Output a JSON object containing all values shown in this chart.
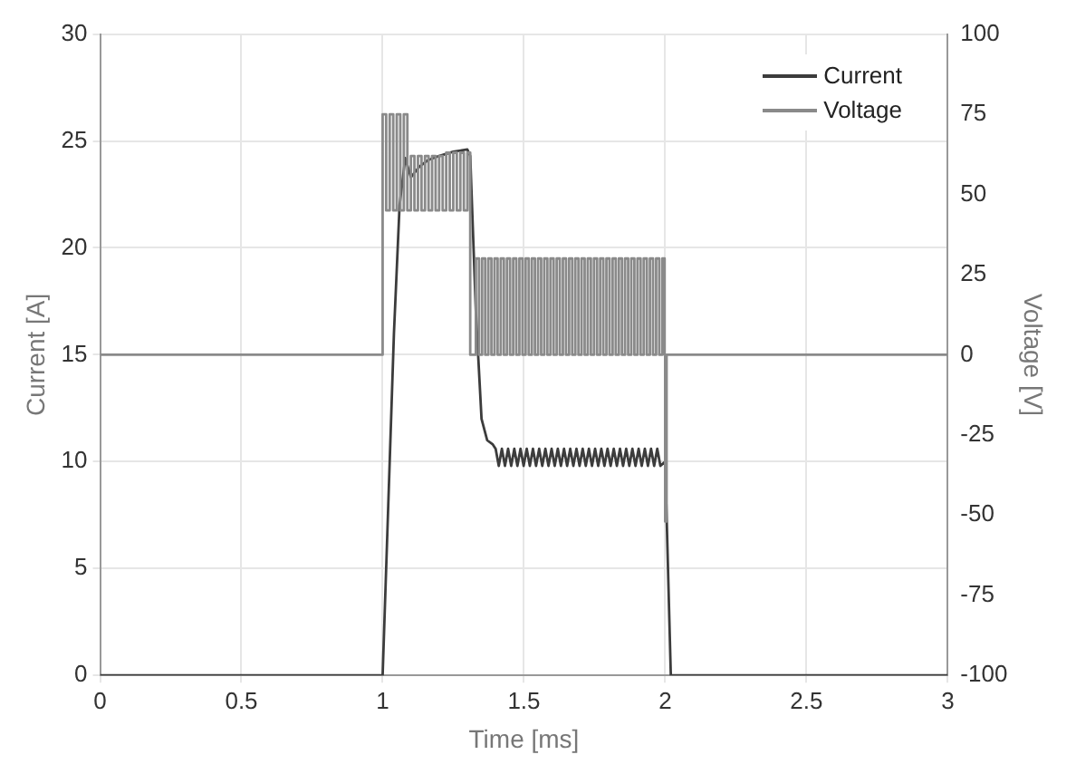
{
  "chart_data": {
    "type": "line",
    "xlabel": "Time [ms]",
    "ylabel": "Current [A]",
    "y2label": "Voltage [V]",
    "xlim": [
      0,
      3
    ],
    "xticks": [
      0,
      0.5,
      1,
      1.5,
      2,
      2.5,
      3
    ],
    "ylim": [
      0,
      30
    ],
    "yticks": [
      0,
      5,
      10,
      15,
      20,
      25,
      30
    ],
    "y2lim": [
      -100,
      100
    ],
    "y2ticks": [
      -100,
      -75,
      -50,
      -25,
      0,
      25,
      50,
      75,
      100
    ],
    "grid": true,
    "legend": "top right",
    "marker": "none",
    "line_style": "solid",
    "series": [
      {
        "name": "Current",
        "color": "#3c3c3c",
        "x": [
          0,
          1.0,
          1.02,
          1.04,
          1.06,
          1.08,
          1.1,
          1.13,
          1.16,
          1.2,
          1.25,
          1.3,
          1.31,
          1.33,
          1.35,
          1.37,
          1.39,
          1.4,
          1.411,
          1.422,
          1.433,
          1.444,
          1.455,
          1.466,
          1.477,
          1.488,
          1.499,
          1.51,
          1.521,
          1.532,
          1.543,
          1.554,
          1.565,
          1.576,
          1.587,
          1.598,
          1.609,
          1.62,
          1.631,
          1.642,
          1.653,
          1.664,
          1.675,
          1.686,
          1.697,
          1.708,
          1.719,
          1.73,
          1.741,
          1.752,
          1.763,
          1.774,
          1.785,
          1.796,
          1.807,
          1.818,
          1.829,
          1.84,
          1.851,
          1.862,
          1.873,
          1.884,
          1.895,
          1.906,
          1.917,
          1.928,
          1.939,
          1.95,
          1.961,
          1.972,
          1.983,
          2.0,
          2.02,
          3.0
        ],
        "values": [
          0,
          0,
          8,
          16,
          22,
          24.2,
          23.3,
          23.8,
          24.1,
          24.3,
          24.5,
          24.6,
          24.3,
          17,
          12,
          11,
          10.8,
          10.6,
          9.8,
          10.6,
          9.8,
          10.6,
          9.8,
          10.6,
          9.8,
          10.6,
          9.8,
          10.6,
          9.8,
          10.6,
          9.8,
          10.6,
          9.8,
          10.6,
          9.8,
          10.6,
          9.8,
          10.6,
          9.8,
          10.6,
          9.8,
          10.6,
          9.8,
          10.6,
          9.8,
          10.6,
          9.8,
          10.6,
          9.8,
          10.6,
          9.8,
          10.6,
          9.8,
          10.6,
          9.8,
          10.6,
          9.8,
          10.6,
          9.8,
          10.6,
          9.8,
          10.6,
          9.8,
          10.6,
          9.8,
          10.6,
          9.8,
          10.6,
          9.8,
          10.6,
          9.8,
          10,
          0,
          0
        ]
      },
      {
        "name": "Voltage",
        "color": "#8a8a8a",
        "type": "step",
        "axis": "y2",
        "x": [
          0,
          1.0,
          1.0125,
          1.025,
          1.0375,
          1.05,
          1.0625,
          1.075,
          1.0875,
          1.1,
          1.1125,
          1.125,
          1.1375,
          1.15,
          1.1625,
          1.175,
          1.1875,
          1.2,
          1.2125,
          1.225,
          1.2375,
          1.25,
          1.2625,
          1.275,
          1.2875,
          1.3,
          1.31,
          1.33,
          1.341,
          1.352,
          1.363,
          1.374,
          1.385,
          1.396,
          1.407,
          1.418,
          1.429,
          1.44,
          1.451,
          1.462,
          1.473,
          1.484,
          1.495,
          1.506,
          1.517,
          1.528,
          1.539,
          1.55,
          1.561,
          1.572,
          1.583,
          1.594,
          1.605,
          1.616,
          1.627,
          1.638,
          1.649,
          1.66,
          1.671,
          1.682,
          1.693,
          1.704,
          1.715,
          1.726,
          1.737,
          1.748,
          1.759,
          1.77,
          1.781,
          1.792,
          1.803,
          1.814,
          1.825,
          1.836,
          1.847,
          1.858,
          1.869,
          1.88,
          1.891,
          1.902,
          1.913,
          1.924,
          1.935,
          1.946,
          1.957,
          1.968,
          1.979,
          1.99,
          1.998,
          2.0,
          2.005,
          3.0
        ],
        "values": [
          0,
          75,
          45,
          75,
          45,
          75,
          45,
          75,
          45,
          62,
          45,
          62,
          45,
          62,
          45,
          62,
          45,
          62,
          45,
          63,
          45,
          63,
          45,
          63,
          45,
          63,
          0,
          30,
          0,
          30,
          0,
          30,
          0,
          30,
          0,
          30,
          0,
          30,
          0,
          30,
          0,
          30,
          0,
          30,
          0,
          30,
          0,
          30,
          0,
          30,
          0,
          30,
          0,
          30,
          0,
          30,
          0,
          30,
          0,
          30,
          0,
          30,
          0,
          30,
          0,
          30,
          0,
          30,
          0,
          30,
          0,
          30,
          0,
          30,
          0,
          30,
          0,
          30,
          0,
          30,
          0,
          30,
          0,
          30,
          0,
          30,
          0,
          30,
          0,
          -52,
          0,
          0
        ]
      }
    ]
  }
}
